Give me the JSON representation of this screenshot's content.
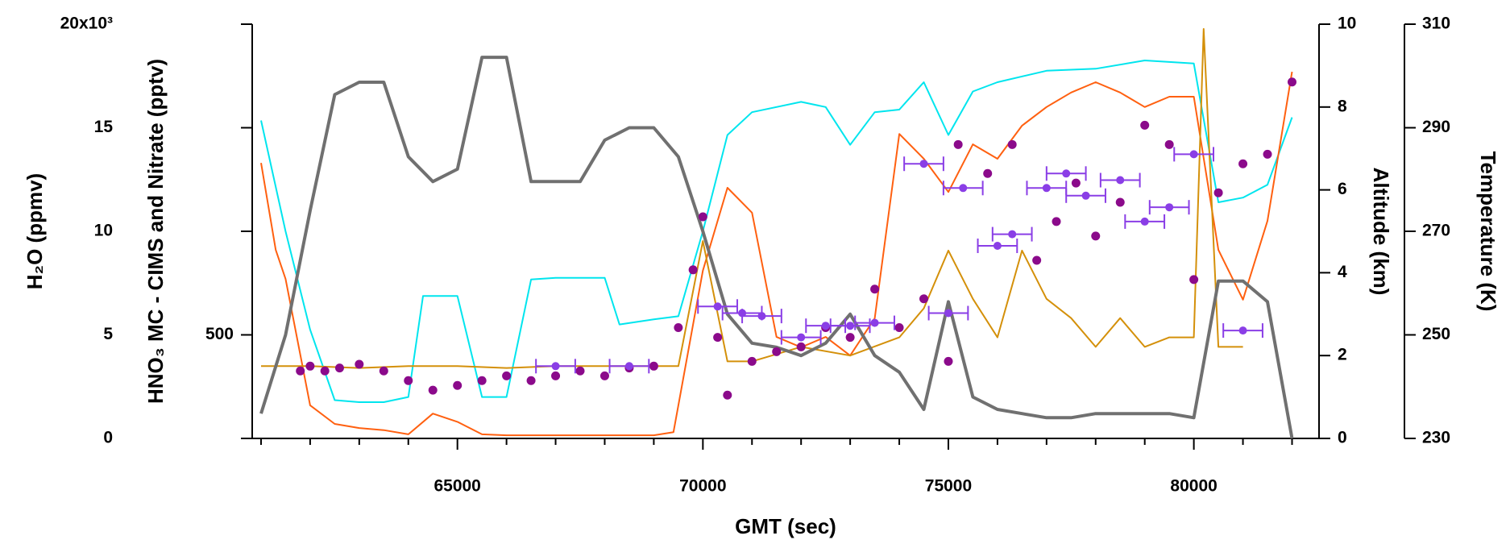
{
  "chart_data": {
    "type": "line",
    "x_label": "GMT (sec)",
    "xlim": [
      60820,
      82550
    ],
    "xticks": [
      65000,
      70000,
      75000,
      80000
    ],
    "x_minor_ticks": [
      61000,
      62000,
      63000,
      64000,
      66000,
      67000,
      68000,
      69000,
      71000,
      72000,
      73000,
      74000,
      76000,
      77000,
      78000,
      79000,
      81000,
      82000
    ],
    "axes": {
      "h2o": {
        "label": "H₂O (ppmv)",
        "ylim": [
          0,
          20000
        ],
        "yticks": [
          0,
          {
            "value": 5000,
            "label": "5"
          },
          {
            "value": 10000,
            "label": "10"
          },
          {
            "value": 15000,
            "label": "15"
          },
          {
            "value": 20000,
            "label": "20x10³"
          }
        ]
      },
      "hno3": {
        "label": "HNO₃ MC - CIMS and Nitrate (pptv)",
        "ylim": [
          0,
          2000
        ],
        "yticks": [
          500
        ]
      },
      "altitude": {
        "label": "Altitude (km)",
        "ylim": [
          0,
          10
        ],
        "yticks": [
          0,
          2,
          4,
          6,
          8,
          10
        ]
      },
      "temperature": {
        "label": "Temperature (K)",
        "ylim": [
          230,
          310
        ],
        "yticks": [
          230,
          250,
          270,
          290,
          310
        ]
      }
    },
    "series": [
      {
        "kind": "line",
        "axis": "temperature",
        "color": "#00e5ee",
        "width": 2,
        "x": [
          61000,
          61500,
          62000,
          62500,
          63000,
          63500,
          64000,
          64300,
          65000,
          65500,
          66000,
          66500,
          67000,
          68000,
          68300,
          69000,
          69500,
          70000,
          70500,
          71000,
          72000,
          72500,
          73000,
          73500,
          74000,
          74500,
          75000,
          75500,
          76000,
          77000,
          78000,
          79000,
          80000,
          80500,
          81000,
          81500,
          82000
        ],
        "values": [
          291.4,
          270,
          251,
          237.4,
          237,
          237,
          238,
          257.5,
          257.5,
          238,
          238,
          260.7,
          261,
          261,
          252,
          253,
          253.6,
          270,
          288.6,
          293,
          295,
          294,
          286.7,
          293,
          293.5,
          298.8,
          288.6,
          297,
          298.8,
          301,
          301.4,
          303,
          302.4,
          275.6,
          276.5,
          279,
          292
        ]
      },
      {
        "kind": "line",
        "axis": "h2o",
        "color": "#ff6010",
        "width": 2,
        "x": [
          61000,
          61300,
          61500,
          62000,
          62500,
          63000,
          63500,
          64000,
          64500,
          65000,
          65500,
          66000,
          67000,
          68000,
          69000,
          69400,
          69500,
          70000,
          70500,
          71000,
          71500,
          72000,
          72500,
          73000,
          73500,
          74000,
          74500,
          75000,
          75500,
          76000,
          76500,
          77000,
          77500,
          78000,
          78500,
          79000,
          79500,
          80000,
          80500,
          81000,
          81500,
          82000
        ],
        "values": [
          13300,
          9100,
          7700,
          1600,
          700,
          500,
          400,
          200,
          1200,
          800,
          200,
          150,
          150,
          150,
          150,
          300,
          1600,
          8100,
          12100,
          10900,
          4900,
          4400,
          4900,
          4000,
          5800,
          14700,
          13500,
          11900,
          14200,
          13500,
          15100,
          16000,
          16700,
          17200,
          16700,
          16000,
          16500,
          16500,
          9100,
          6700,
          10500,
          17700
        ]
      },
      {
        "kind": "line",
        "axis": "hno3",
        "color": "#d4900a",
        "width": 2,
        "x": [
          61000,
          62000,
          63000,
          64000,
          65000,
          66000,
          67000,
          68000,
          69000,
          69500,
          70000,
          70500,
          71000,
          72000,
          73000,
          74000,
          74500,
          75000,
          75500,
          76000,
          76500,
          77000,
          77500,
          78000,
          78500,
          79000,
          79500,
          80000,
          80200,
          80500,
          81000
        ],
        "values": [
          349,
          349,
          340,
          349,
          349,
          340,
          349,
          349,
          349,
          349,
          953,
          372,
          372,
          442,
          400,
          488,
          628,
          907,
          674,
          488,
          907,
          674,
          581,
          442,
          581,
          442,
          488,
          488,
          1977,
          442,
          442
        ]
      },
      {
        "kind": "line",
        "axis": "altitude",
        "color": "#707070",
        "width": 4,
        "x": [
          61000,
          61500,
          62000,
          62500,
          63000,
          63500,
          64000,
          64500,
          65000,
          65500,
          66000,
          66500,
          67000,
          67500,
          68000,
          68500,
          69000,
          69500,
          70000,
          70500,
          71000,
          71500,
          72000,
          72500,
          73000,
          73500,
          74000,
          74500,
          75000,
          75500,
          76000,
          76500,
          77000,
          77500,
          78000,
          78500,
          79000,
          79500,
          80000,
          80500,
          81000,
          81500,
          82000
        ],
        "values": [
          0.6,
          2.5,
          5.5,
          8.3,
          8.6,
          8.6,
          6.8,
          6.2,
          6.5,
          9.2,
          9.2,
          6.2,
          6.2,
          6.2,
          7.2,
          7.5,
          7.5,
          6.8,
          5,
          3,
          2.3,
          2.2,
          2,
          2.3,
          3,
          2,
          1.6,
          0.7,
          3.3,
          1,
          0.7,
          0.6,
          0.5,
          0.5,
          0.6,
          0.6,
          0.6,
          0.6,
          0.5,
          3.8,
          3.8,
          3.3,
          0
        ]
      },
      {
        "kind": "markers",
        "axis": "hno3",
        "color": "#8b0a8b",
        "x": [
          61800,
          62000,
          62300,
          62600,
          63000,
          63500,
          64000,
          64500,
          65000,
          65500,
          66000,
          66500,
          67000,
          67500,
          68000,
          68500,
          69000,
          69500,
          69800,
          70000,
          70300,
          70500,
          71000,
          71500,
          72000,
          72500,
          73000,
          73500,
          74000,
          74500,
          75000,
          75200,
          75800,
          76300,
          76800,
          77200,
          77600,
          78000,
          78500,
          79000,
          79500,
          80000,
          80500,
          81000,
          81500,
          82000
        ],
        "values": [
          326,
          349,
          326,
          340,
          358,
          326,
          279,
          233,
          256,
          279,
          302,
          279,
          302,
          326,
          302,
          340,
          349,
          535,
          814,
          1070,
          488,
          209,
          372,
          419,
          442,
          535,
          488,
          721,
          535,
          674,
          372,
          1419,
          1279,
          1419,
          860,
          1047,
          1233,
          977,
          1140,
          1512,
          1419,
          767,
          1186,
          1326,
          1372,
          1721
        ]
      },
      {
        "kind": "errorbar",
        "axis": "hno3",
        "color": "#8a3ee6",
        "x": [
          67000,
          68500,
          70300,
          70800,
          71200,
          72000,
          72500,
          73000,
          73500,
          74500,
          75000,
          75300,
          76000,
          76300,
          77000,
          77400,
          77800,
          78500,
          79000,
          79500,
          80000,
          81000
        ],
        "values": [
          349,
          349,
          637,
          605,
          591,
          488,
          544,
          544,
          558,
          1326,
          605,
          1209,
          930,
          986,
          1209,
          1279,
          1172,
          1247,
          1047,
          1116,
          1372,
          521
        ],
        "xerr": [
          400,
          400,
          400,
          400,
          400,
          400,
          400,
          400,
          400,
          400,
          400,
          400,
          400,
          400,
          400,
          400,
          400,
          400,
          400,
          400,
          400,
          400
        ]
      }
    ]
  }
}
